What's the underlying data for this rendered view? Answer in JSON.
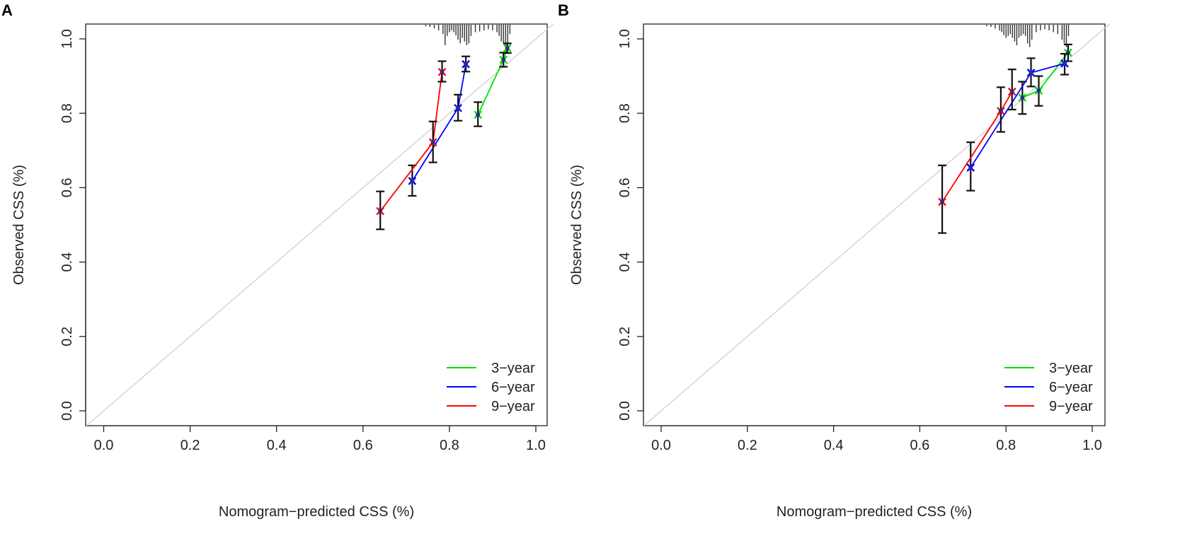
{
  "figure": {
    "colors": {
      "three_year": "#00e000",
      "six_year": "#0000ff",
      "nine_year": "#ff0000",
      "reference": "#d0d0d0",
      "axis": "#222222",
      "marker": "#2a2aa0"
    }
  },
  "chart_data": [
    {
      "panel_label": "A",
      "type": "line",
      "xlabel": "Nomogram−predicted CSS (%)",
      "ylabel": "Observed CSS (%)",
      "xlim": [
        -0.04,
        1.04
      ],
      "ylim": [
        -0.04,
        1.04
      ],
      "xticks": [
        0.0,
        0.2,
        0.4,
        0.6,
        0.8,
        1.0
      ],
      "xtick_labels": [
        "0.0",
        "0.2",
        "0.4",
        "0.6",
        "0.8",
        "1.0"
      ],
      "yticks": [
        0.0,
        0.2,
        0.4,
        0.6,
        0.8,
        1.0
      ],
      "ytick_labels": [
        "0.0",
        "0.2",
        "0.4",
        "0.6",
        "0.8",
        "1.0"
      ],
      "reference_line": "diagonal",
      "legend_position": "bottom-right",
      "series": [
        {
          "name": "3−year",
          "color_key": "three_year",
          "points": [
            {
              "x": 0.866,
              "y": 0.796,
              "lo": 0.765,
              "hi": 0.83
            },
            {
              "x": 0.925,
              "y": 0.944,
              "lo": 0.925,
              "hi": 0.963
            },
            {
              "x": 0.934,
              "y": 0.975,
              "lo": 0.962,
              "hi": 0.988
            }
          ]
        },
        {
          "name": "6−year",
          "color_key": "six_year",
          "points": [
            {
              "x": 0.714,
              "y": 0.618,
              "lo": 0.578,
              "hi": 0.66
            },
            {
              "x": 0.82,
              "y": 0.814,
              "lo": 0.78,
              "hi": 0.85
            },
            {
              "x": 0.838,
              "y": 0.932,
              "lo": 0.912,
              "hi": 0.953
            }
          ]
        },
        {
          "name": "9−year",
          "color_key": "nine_year",
          "points": [
            {
              "x": 0.64,
              "y": 0.537,
              "lo": 0.488,
              "hi": 0.59
            },
            {
              "x": 0.762,
              "y": 0.722,
              "lo": 0.668,
              "hi": 0.778
            },
            {
              "x": 0.783,
              "y": 0.911,
              "lo": 0.885,
              "hi": 0.94
            }
          ]
        }
      ],
      "rug_x": [
        0.745,
        0.755,
        0.765,
        0.775,
        0.785,
        0.79,
        0.795,
        0.8,
        0.805,
        0.81,
        0.815,
        0.82,
        0.825,
        0.83,
        0.835,
        0.84,
        0.845,
        0.85,
        0.86,
        0.87,
        0.88,
        0.89,
        0.9,
        0.91,
        0.915,
        0.92,
        0.925,
        0.93,
        0.935,
        0.94
      ],
      "rug_h": [
        0.004,
        0.006,
        0.01,
        0.015,
        0.025,
        0.055,
        0.03,
        0.02,
        0.015,
        0.02,
        0.028,
        0.04,
        0.05,
        0.035,
        0.045,
        0.055,
        0.05,
        0.03,
        0.02,
        0.018,
        0.015,
        0.012,
        0.015,
        0.02,
        0.03,
        0.045,
        0.05,
        0.06,
        0.055,
        0.025
      ]
    },
    {
      "panel_label": "B",
      "type": "line",
      "xlabel": "Nomogram−predicted CSS (%)",
      "ylabel": "Observed CSS (%)",
      "xlim": [
        -0.04,
        1.04
      ],
      "ylim": [
        -0.04,
        1.04
      ],
      "xticks": [
        0.0,
        0.2,
        0.4,
        0.6,
        0.8,
        1.0
      ],
      "xtick_labels": [
        "0.0",
        "0.2",
        "0.4",
        "0.6",
        "0.8",
        "1.0"
      ],
      "yticks": [
        0.0,
        0.2,
        0.4,
        0.6,
        0.8,
        1.0
      ],
      "ytick_labels": [
        "0.0",
        "0.2",
        "0.4",
        "0.6",
        "0.8",
        "1.0"
      ],
      "reference_line": "diagonal",
      "legend_position": "bottom-right",
      "series": [
        {
          "name": "3−year",
          "color_key": "three_year",
          "points": [
            {
              "x": 0.838,
              "y": 0.842,
              "lo": 0.798,
              "hi": 0.885
            },
            {
              "x": 0.876,
              "y": 0.861,
              "lo": 0.82,
              "hi": 0.9
            },
            {
              "x": 0.944,
              "y": 0.963,
              "lo": 0.94,
              "hi": 0.985
            }
          ]
        },
        {
          "name": "6−year",
          "color_key": "six_year",
          "points": [
            {
              "x": 0.718,
              "y": 0.654,
              "lo": 0.592,
              "hi": 0.722
            },
            {
              "x": 0.858,
              "y": 0.909,
              "lo": 0.872,
              "hi": 0.948
            },
            {
              "x": 0.936,
              "y": 0.934,
              "lo": 0.904,
              "hi": 0.96
            }
          ]
        },
        {
          "name": "9−year",
          "color_key": "nine_year",
          "points": [
            {
              "x": 0.652,
              "y": 0.562,
              "lo": 0.478,
              "hi": 0.66
            },
            {
              "x": 0.788,
              "y": 0.806,
              "lo": 0.75,
              "hi": 0.87
            },
            {
              "x": 0.814,
              "y": 0.858,
              "lo": 0.81,
              "hi": 0.918
            }
          ]
        }
      ],
      "rug_x": [
        0.755,
        0.765,
        0.775,
        0.785,
        0.79,
        0.795,
        0.8,
        0.805,
        0.81,
        0.815,
        0.82,
        0.825,
        0.83,
        0.835,
        0.84,
        0.845,
        0.85,
        0.855,
        0.86,
        0.87,
        0.88,
        0.89,
        0.9,
        0.91,
        0.92,
        0.93,
        0.935,
        0.94,
        0.945
      ],
      "rug_h": [
        0.004,
        0.006,
        0.01,
        0.015,
        0.02,
        0.028,
        0.035,
        0.03,
        0.025,
        0.035,
        0.045,
        0.055,
        0.035,
        0.03,
        0.025,
        0.03,
        0.05,
        0.06,
        0.04,
        0.02,
        0.015,
        0.012,
        0.015,
        0.02,
        0.025,
        0.04,
        0.05,
        0.06,
        0.03
      ]
    }
  ]
}
